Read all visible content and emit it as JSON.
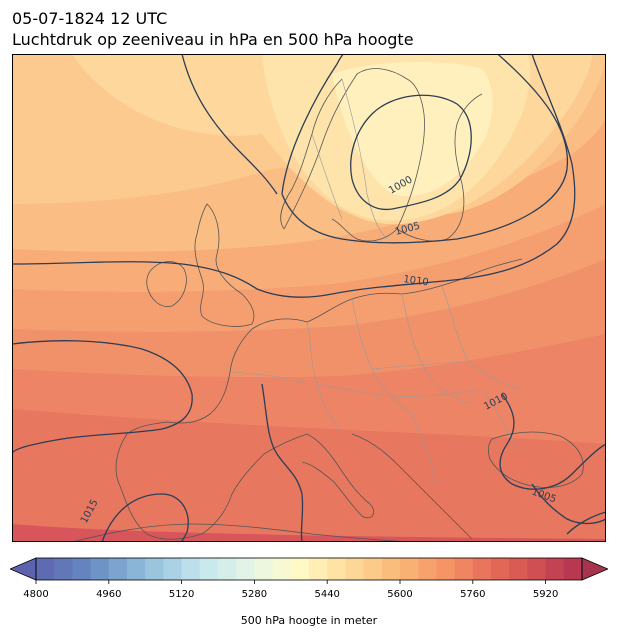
{
  "header": {
    "datetime": "05-07-1824 12 UTC",
    "subtitle": "Luchtdruk op zeeniveau in hPa en 500 hPa hoogte"
  },
  "colorbar": {
    "label": "500 hPa hoogte in meter",
    "min": 4800,
    "max": 6000,
    "step": 40,
    "ticks": [
      "4800",
      "4960",
      "5120",
      "5280",
      "5440",
      "5600",
      "5760",
      "5920"
    ],
    "extend": "both"
  },
  "map": {
    "region": "Europe",
    "isobar_labels": [
      {
        "value": "1000"
      },
      {
        "value": "1005"
      },
      {
        "value": "1010"
      },
      {
        "value": "1010"
      },
      {
        "value": "1005"
      },
      {
        "value": "1015"
      }
    ],
    "colors": {
      "isobar": "#2b3e57",
      "coast": "#555555",
      "border": "#9a9a9a"
    }
  }
}
